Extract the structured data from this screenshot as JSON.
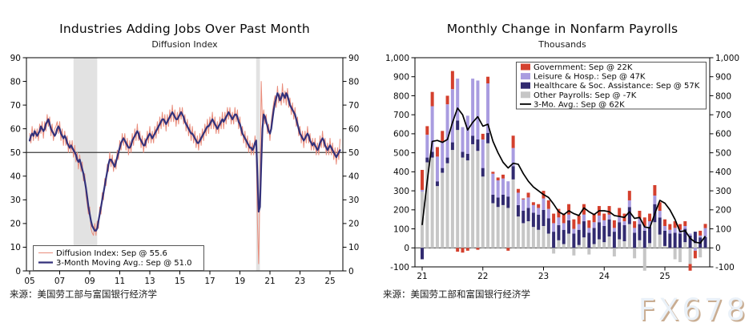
{
  "watermark": "FX678",
  "chart_data": [
    {
      "type": "line",
      "title": "Industries Adding Jobs Over Past Month",
      "subtitle": "Diffusion Index",
      "source": "来源：美国劳工部与富国银行经济学",
      "x_start": "2005-01",
      "x_end": "2025-09",
      "x_tick_labels": [
        "05",
        "07",
        "09",
        "11",
        "13",
        "15",
        "17",
        "19",
        "21",
        "23",
        "25"
      ],
      "ylim": [
        0,
        90
      ],
      "yticks": [
        0,
        10,
        20,
        30,
        40,
        50,
        60,
        70,
        80,
        90
      ],
      "reference_line": 50,
      "recession_bands": [
        [
          2007.92,
          2009.5
        ],
        [
          2020.08,
          2020.33
        ]
      ],
      "legend_position": "bottom-left",
      "grid": false,
      "series": [
        {
          "name": "Diffusion Index: Sep @ 55.6",
          "kind": "line",
          "color": "#E98C7B",
          "width": 1,
          "values": [
            58,
            54,
            61,
            55,
            60,
            56,
            60,
            55,
            62,
            58,
            63,
            56,
            63,
            59,
            66,
            61,
            65,
            57,
            62,
            55,
            60,
            61,
            63,
            58,
            63,
            55,
            60,
            53,
            59,
            53,
            57,
            50,
            55,
            50,
            55,
            48,
            53,
            46,
            50,
            43,
            49,
            42,
            46,
            38,
            41,
            32,
            28,
            24,
            27,
            18,
            16,
            15,
            20,
            15,
            21,
            18,
            27,
            24,
            33,
            30,
            39,
            36,
            45,
            42,
            50,
            44,
            49,
            42,
            47,
            43,
            51,
            47,
            55,
            51,
            58,
            53,
            58,
            51,
            56,
            49,
            55,
            50,
            58,
            53,
            60,
            55,
            62,
            55,
            59,
            52,
            57,
            50,
            56,
            52,
            59,
            54,
            61,
            54,
            59,
            54,
            61,
            56,
            63,
            58,
            65,
            60,
            67,
            61,
            66,
            59,
            66,
            61,
            68,
            63,
            70,
            63,
            68,
            61,
            67,
            62,
            69,
            64,
            69,
            62,
            66,
            59,
            64,
            57,
            62,
            55,
            61,
            54,
            59,
            52,
            57,
            51,
            58,
            53,
            60,
            55,
            62,
            57,
            64,
            58,
            65,
            60,
            67,
            60,
            65,
            58,
            63,
            58,
            65,
            60,
            67,
            60,
            67,
            62,
            69,
            64,
            69,
            62,
            67,
            62,
            69,
            63,
            68,
            60,
            65,
            57,
            61,
            54,
            59,
            52,
            57,
            50,
            55,
            49,
            54,
            49,
            57,
            52,
            20,
            3,
            35,
            80,
            63,
            68,
            62,
            66,
            58,
            62,
            55,
            63,
            67,
            71,
            74,
            69,
            78,
            71,
            75,
            70,
            79,
            71,
            76,
            70,
            77,
            69,
            73,
            66,
            71,
            64,
            69,
            61,
            65,
            57,
            61,
            54,
            59,
            52,
            59,
            54,
            61,
            54,
            58,
            51,
            56,
            51,
            56,
            49,
            54,
            49,
            57,
            52,
            59,
            52,
            56,
            49,
            54,
            49,
            56,
            49,
            54,
            47,
            52,
            45,
            52,
            47,
            55.6
          ]
        },
        {
          "name": "3-Month Moving Avg.: Sep @ 51.0",
          "kind": "line",
          "color": "#33317A",
          "width": 2.2,
          "values": [
            55,
            57,
            58,
            57,
            59,
            58,
            57,
            58,
            59,
            61,
            60,
            59,
            60,
            62,
            63,
            64,
            62,
            60,
            59,
            58,
            57,
            58,
            60,
            61,
            60,
            58,
            57,
            56,
            57,
            56,
            54,
            53,
            52,
            53,
            52,
            51,
            50,
            49,
            47,
            46,
            47,
            45,
            43,
            41,
            38,
            35,
            31,
            27,
            24,
            21,
            19,
            18,
            17,
            17,
            18,
            21,
            24,
            27,
            30,
            33,
            36,
            39,
            42,
            45,
            47,
            47,
            46,
            45,
            44,
            46,
            48,
            50,
            52,
            54,
            55,
            56,
            55,
            54,
            53,
            52,
            52,
            53,
            55,
            56,
            57,
            58,
            59,
            58,
            56,
            55,
            54,
            53,
            53,
            55,
            56,
            57,
            58,
            57,
            56,
            57,
            58,
            59,
            60,
            61,
            62,
            63,
            64,
            64,
            63,
            62,
            63,
            64,
            65,
            66,
            67,
            66,
            65,
            64,
            64,
            65,
            66,
            67,
            66,
            65,
            63,
            62,
            61,
            60,
            59,
            58,
            58,
            57,
            56,
            55,
            54,
            54,
            55,
            56,
            57,
            58,
            59,
            60,
            61,
            61,
            62,
            63,
            64,
            63,
            62,
            61,
            60,
            61,
            62,
            63,
            64,
            63,
            64,
            65,
            66,
            67,
            66,
            65,
            64,
            65,
            66,
            66,
            65,
            63,
            62,
            60,
            58,
            57,
            56,
            55,
            54,
            53,
            52,
            52,
            51,
            52,
            54,
            55,
            40,
            25,
            27,
            45,
            60,
            66,
            65,
            63,
            61,
            59,
            58,
            60,
            64,
            68,
            71,
            73,
            75,
            74,
            72,
            73,
            75,
            74,
            73,
            75,
            74,
            72,
            70,
            69,
            68,
            67,
            66,
            64,
            62,
            60,
            58,
            57,
            56,
            55,
            56,
            57,
            58,
            57,
            55,
            54,
            53,
            54,
            53,
            52,
            51,
            52,
            54,
            55,
            56,
            55,
            53,
            52,
            51,
            52,
            53,
            52,
            51,
            50,
            49,
            48,
            49,
            50,
            51.0
          ]
        }
      ]
    },
    {
      "type": "bar",
      "title": "Monthly Change in Nonfarm Payrolls",
      "subtitle": "Thousands",
      "source": "来源：美国劳工部和富国银行经济学",
      "x_start": "2021-01",
      "x_end": "2025-09",
      "x_tick_labels": [
        "21",
        "22",
        "23",
        "24",
        "25"
      ],
      "ylim": [
        -100,
        1000
      ],
      "yticks": [
        -100,
        0,
        100,
        200,
        300,
        400,
        500,
        600,
        700,
        800,
        900,
        1000
      ],
      "ylabels": [
        "-100",
        "0",
        "100",
        "200",
        "300",
        "400",
        "500",
        "600",
        "700",
        "800",
        "900",
        "1,000"
      ],
      "legend_position": "top-right",
      "grid": false,
      "stack_note": "bars stacked bottom-to-top: Other, Healthcare, Leisure, Government",
      "series": [
        {
          "name": "Government: Sep @ 22K",
          "kind": "bar",
          "color": "#D4402E",
          "values": [
            105,
            45,
            75,
            50,
            55,
            45,
            95,
            -20,
            -25,
            -15,
            0,
            -10,
            30,
            35,
            10,
            15,
            20,
            -15,
            65,
            20,
            5,
            25,
            15,
            20,
            40,
            45,
            50,
            45,
            50,
            55,
            50,
            45,
            55,
            40,
            45,
            50,
            35,
            45,
            40,
            45,
            40,
            50,
            35,
            40,
            45,
            40,
            55,
            45,
            35,
            30,
            35,
            30,
            25,
            -35,
            -40,
            25,
            22
          ]
        },
        {
          "name": "Leisure & Hosp.: Sep @ 47K",
          "kind": "bar",
          "color": "#A99CE0",
          "values": [
            10,
            120,
            240,
            130,
            140,
            280,
            280,
            220,
            130,
            200,
            300,
            310,
            150,
            260,
            110,
            90,
            85,
            80,
            95,
            65,
            60,
            55,
            40,
            35,
            60,
            50,
            45,
            40,
            35,
            30,
            25,
            30,
            35,
            25,
            30,
            35,
            30,
            25,
            20,
            30,
            20,
            35,
            25,
            30,
            25,
            30,
            45,
            35,
            25,
            20,
            25,
            20,
            15,
            10,
            -15,
            10,
            47
          ]
        },
        {
          "name": "Healthcare & Soc. Assistance: Sep @ 57K",
          "kind": "bar",
          "color": "#322B70",
          "values": [
            -60,
            25,
            30,
            25,
            25,
            30,
            40,
            50,
            30,
            35,
            45,
            60,
            45,
            55,
            45,
            50,
            55,
            60,
            70,
            60,
            65,
            70,
            75,
            80,
            85,
            80,
            85,
            80,
            75,
            70,
            75,
            80,
            85,
            80,
            85,
            90,
            85,
            90,
            85,
            90,
            85,
            90,
            80,
            85,
            90,
            85,
            95,
            90,
            80,
            75,
            80,
            75,
            70,
            65,
            60,
            55,
            57
          ]
        },
        {
          "name": "Other Payrolls: Sep @ -7K",
          "kind": "bar",
          "color": "#C6C6C6",
          "values": [
            295,
            450,
            475,
            325,
            395,
            445,
            515,
            620,
            475,
            460,
            545,
            510,
            375,
            550,
            235,
            215,
            225,
            210,
            360,
            165,
            130,
            140,
            110,
            95,
            115,
            75,
            -30,
            40,
            20,
            75,
            -40,
            15,
            55,
            -35,
            20,
            45,
            30,
            60,
            -45,
            45,
            35,
            125,
            -55,
            40,
            -120,
            25,
            135,
            70,
            10,
            -5,
            -60,
            -75,
            30,
            -85,
            25,
            -50,
            -7
          ]
        },
        {
          "name": "3-Mo. Avg.: Sep @ 62K",
          "kind": "line",
          "color": "#000000",
          "width": 1.7,
          "values": [
            120,
            350,
            560,
            565,
            555,
            570,
            660,
            735,
            700,
            620,
            660,
            690,
            640,
            650,
            560,
            500,
            450,
            420,
            445,
            440,
            390,
            350,
            320,
            300,
            280,
            265,
            230,
            190,
            175,
            195,
            180,
            170,
            210,
            190,
            175,
            195,
            195,
            190,
            170,
            165,
            160,
            190,
            155,
            160,
            110,
            105,
            180,
            250,
            235,
            200,
            150,
            85,
            90,
            50,
            30,
            25,
            62
          ]
        }
      ]
    }
  ]
}
